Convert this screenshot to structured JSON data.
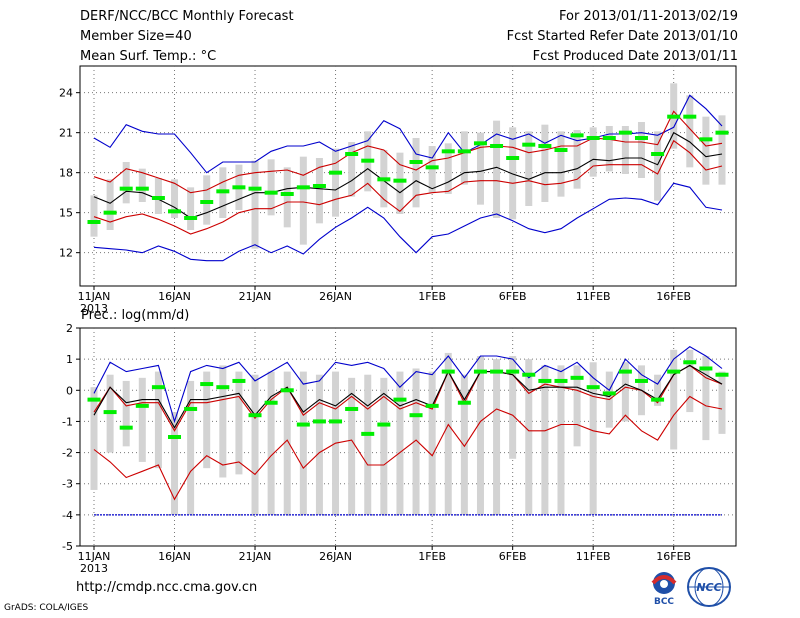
{
  "header": {
    "left": [
      "DERF/NCC/BCC Monthly Forecast",
      "Member Size=40",
      "Mean Surf. Temp.: °C"
    ],
    "right": [
      "For 2013/01/11-2013/02/19",
      "Fcst Started Refer Date 2013/01/10",
      "Fcst Produced Date 2013/01/11"
    ]
  },
  "footer": {
    "url": "http://cmdp.ncc.cma.gov.cn",
    "credit": "GrADS: COLA/IGES"
  },
  "logos": {
    "left_text": "BCC",
    "right_text": "NCC"
  },
  "colors": {
    "box": "#d3d3d3",
    "median": "#00ee00",
    "envelope": "#0000cc",
    "spread": "#cc0000",
    "mean": "#000000"
  },
  "chart_data": [
    {
      "type": "box",
      "title": "Mean Surf. Temp.: °C",
      "xlim": [
        1,
        40
      ],
      "ylim": [
        9.5,
        26
      ],
      "yticks": [
        12,
        15,
        18,
        21,
        24
      ],
      "xticks": [
        1,
        6,
        11,
        16,
        22,
        27,
        32,
        37
      ],
      "xtick_labels": [
        "11JAN",
        "16JAN",
        "21JAN",
        "26JAN",
        "1FEB",
        "6FEB",
        "11FEB",
        "16FEB"
      ],
      "xtick_sublabel": "2013",
      "grid": true,
      "days": [
        1,
        2,
        3,
        4,
        5,
        6,
        7,
        8,
        9,
        10,
        11,
        12,
        13,
        14,
        15,
        16,
        17,
        18,
        19,
        20,
        21,
        22,
        23,
        24,
        25,
        26,
        27,
        28,
        29,
        30,
        31,
        32,
        33,
        34,
        35,
        36,
        37,
        38,
        39,
        40
      ],
      "box_low": [
        13.2,
        13.7,
        15.7,
        15.8,
        14.9,
        14.6,
        13.7,
        14.1,
        14.6,
        15.2,
        12.3,
        14.8,
        13.9,
        12.6,
        14.2,
        14.7,
        16.2,
        16.6,
        15.4,
        14.9,
        15.4,
        16.5,
        16.4,
        17.1,
        15.6,
        14.6,
        14.5,
        15.5,
        15.8,
        16.2,
        16.8,
        17.7,
        18.1,
        17.9,
        17.6,
        15.9,
        19.8,
        18.4,
        17.1,
        17.1
      ],
      "box_high": [
        16.3,
        17.5,
        18.8,
        18.3,
        17.6,
        17.5,
        16.9,
        17.8,
        18.4,
        18.6,
        18.9,
        19.0,
        18.4,
        19.2,
        19.1,
        19.8,
        20.3,
        21.1,
        19.7,
        19.5,
        20.6,
        20.0,
        20.2,
        21.1,
        21.0,
        21.9,
        21.4,
        21.1,
        21.6,
        21.1,
        21.2,
        21.4,
        21.5,
        21.5,
        21.8,
        21.1,
        24.7,
        23.8,
        22.2,
        22.3
      ],
      "median": [
        14.3,
        15.0,
        16.8,
        16.8,
        16.1,
        15.1,
        14.6,
        15.8,
        16.6,
        16.9,
        16.8,
        16.5,
        16.4,
        16.9,
        17.0,
        18.0,
        19.4,
        18.9,
        17.5,
        17.4,
        18.8,
        18.4,
        19.6,
        19.6,
        20.2,
        20.0,
        19.1,
        20.1,
        20.0,
        19.7,
        20.8,
        20.6,
        20.6,
        21.0,
        20.6,
        19.4,
        22.2,
        22.2,
        20.5,
        21.0
      ],
      "series": [
        {
          "name": "max",
          "color": "#0000cc",
          "values": [
            20.6,
            19.9,
            21.6,
            21.1,
            20.9,
            20.9,
            19.5,
            18.0,
            18.8,
            18.8,
            18.8,
            19.6,
            20.0,
            20.0,
            20.3,
            19.6,
            20.0,
            20.4,
            21.9,
            21.3,
            19.4,
            19.1,
            21.0,
            19.5,
            20.1,
            20.9,
            20.5,
            20.9,
            20.2,
            20.8,
            20.4,
            20.6,
            20.9,
            20.9,
            21.0,
            20.8,
            21.4,
            23.8,
            22.8,
            21.5
          ]
        },
        {
          "name": "mean_plus_sd",
          "color": "#cc0000",
          "values": [
            17.7,
            17.3,
            18.3,
            18.0,
            17.6,
            17.2,
            16.5,
            16.7,
            17.3,
            17.8,
            18.0,
            18.1,
            18.2,
            17.8,
            18.4,
            18.7,
            19.5,
            20.0,
            19.7,
            18.6,
            18.2,
            18.9,
            19.1,
            19.5,
            19.9,
            20.0,
            19.9,
            19.5,
            19.7,
            20.0,
            20.0,
            20.6,
            20.5,
            20.3,
            20.3,
            20.1,
            22.6,
            21.3,
            20.0,
            20.2
          ]
        },
        {
          "name": "mean",
          "color": "#000000",
          "values": [
            16.2,
            15.7,
            16.6,
            16.5,
            16.0,
            15.4,
            14.6,
            15.0,
            15.5,
            16.0,
            16.5,
            16.5,
            16.8,
            16.9,
            16.8,
            16.7,
            17.4,
            18.3,
            17.4,
            16.5,
            17.4,
            16.8,
            17.3,
            18.0,
            18.1,
            18.4,
            17.9,
            17.5,
            18.0,
            18.0,
            18.3,
            19.0,
            18.9,
            19.1,
            19.1,
            18.6,
            21.0,
            20.3,
            19.2,
            19.4
          ]
        },
        {
          "name": "mean_minus_sd",
          "color": "#cc0000",
          "values": [
            14.7,
            14.3,
            14.7,
            14.9,
            14.5,
            14.0,
            13.4,
            13.8,
            14.3,
            15.0,
            15.3,
            15.3,
            15.8,
            15.8,
            15.6,
            16.0,
            16.3,
            17.2,
            16.0,
            15.1,
            16.3,
            16.5,
            16.6,
            17.3,
            17.4,
            17.4,
            17.2,
            17.4,
            17.1,
            17.2,
            17.5,
            18.5,
            18.6,
            18.6,
            18.6,
            17.9,
            20.4,
            19.5,
            18.2,
            18.5
          ]
        },
        {
          "name": "min",
          "color": "#0000cc",
          "values": [
            12.4,
            12.3,
            12.2,
            12.0,
            12.5,
            12.1,
            11.5,
            11.4,
            11.4,
            12.1,
            12.6,
            12.0,
            12.5,
            11.9,
            13.0,
            13.9,
            14.6,
            15.4,
            14.6,
            13.2,
            12.0,
            13.2,
            13.4,
            14.0,
            14.6,
            14.9,
            14.4,
            13.8,
            13.5,
            13.8,
            14.6,
            15.3,
            16.0,
            16.1,
            16.0,
            15.6,
            17.2,
            16.9,
            15.4,
            15.2
          ]
        }
      ]
    },
    {
      "type": "box",
      "title": "Prec.: log(mm/d)",
      "xlim": [
        1,
        40
      ],
      "ylim": [
        -5,
        2
      ],
      "yticks": [
        -5,
        -4,
        -3,
        -2,
        -1,
        0,
        1,
        2
      ],
      "xticks": [
        1,
        6,
        11,
        16,
        22,
        27,
        32,
        37
      ],
      "xtick_labels": [
        "11JAN",
        "16JAN",
        "21JAN",
        "26JAN",
        "1FEB",
        "6FEB",
        "11FEB",
        "16FEB"
      ],
      "xtick_sublabel": "2013",
      "grid": true,
      "reference_line": {
        "value": -4,
        "color": "#0000cc"
      },
      "days": [
        1,
        2,
        3,
        4,
        5,
        6,
        7,
        8,
        9,
        10,
        11,
        12,
        13,
        14,
        15,
        16,
        17,
        18,
        19,
        20,
        21,
        22,
        23,
        24,
        25,
        26,
        27,
        28,
        29,
        30,
        31,
        32,
        33,
        34,
        35,
        36,
        37,
        38,
        39,
        40
      ],
      "box_low": [
        -3.2,
        -2.0,
        -1.8,
        -2.3,
        -2.5,
        -4.0,
        -4.0,
        -2.5,
        -2.8,
        -2.7,
        -4.0,
        -4.0,
        -4.0,
        -4.0,
        -4.0,
        -4.0,
        -4.0,
        -4.0,
        -4.0,
        -4.0,
        -4.0,
        -4.0,
        -4.0,
        -4.0,
        -4.0,
        -4.0,
        -2.2,
        -4.0,
        -4.0,
        -4.0,
        -1.8,
        -4.0,
        -1.2,
        -1.0,
        -0.8,
        -0.5,
        -1.9,
        -0.7,
        -1.6,
        -1.4
      ],
      "box_high": [
        0.1,
        0.5,
        0.3,
        0.4,
        0.6,
        -0.7,
        0.3,
        0.6,
        0.8,
        0.6,
        0.5,
        0.6,
        0.6,
        0.6,
        0.5,
        0.6,
        0.4,
        0.5,
        0.4,
        0.6,
        0.7,
        0.6,
        1.2,
        0.5,
        1.1,
        1.0,
        1.1,
        1.0,
        0.8,
        0.8,
        0.8,
        0.9,
        0.6,
        0.9,
        0.8,
        0.5,
        1.3,
        1.3,
        1.1,
        0.6
      ],
      "median": [
        -0.3,
        -0.7,
        -1.2,
        -0.5,
        0.1,
        -1.5,
        -0.6,
        0.2,
        0.1,
        0.3,
        -0.8,
        -0.4,
        0.0,
        -1.1,
        -1.0,
        -1.0,
        -0.6,
        -1.4,
        -1.1,
        -0.3,
        -0.8,
        -0.5,
        0.6,
        -0.4,
        0.6,
        0.6,
        0.6,
        0.5,
        0.3,
        0.3,
        0.4,
        0.1,
        -0.1,
        0.6,
        0.3,
        -0.3,
        0.6,
        0.9,
        0.7,
        0.5
      ],
      "series": [
        {
          "name": "max",
          "color": "#0000cc",
          "values": [
            -0.1,
            0.9,
            0.6,
            0.7,
            0.8,
            -1.0,
            0.6,
            0.8,
            0.7,
            0.9,
            0.3,
            0.6,
            0.9,
            0.2,
            0.3,
            0.9,
            0.8,
            0.9,
            0.7,
            0.1,
            0.6,
            0.5,
            1.1,
            0.4,
            1.1,
            1.1,
            1.0,
            0.4,
            0.8,
            0.6,
            0.9,
            0.4,
            0.0,
            1.0,
            0.5,
            0.2,
            1.0,
            1.4,
            1.1,
            0.7
          ]
        },
        {
          "name": "mean_plus_sd",
          "color": "#cc0000",
          "values": [
            -0.7,
            0.1,
            -0.5,
            -0.4,
            -0.4,
            -1.3,
            -0.4,
            -0.4,
            -0.3,
            -0.2,
            -0.9,
            -0.3,
            0.1,
            -0.8,
            -0.4,
            -0.6,
            -0.2,
            -0.6,
            -0.2,
            -0.6,
            -0.4,
            -0.6,
            0.6,
            -0.4,
            0.6,
            0.6,
            0.5,
            -0.1,
            0.2,
            0.1,
            0.0,
            -0.2,
            -0.3,
            0.1,
            0.0,
            -0.4,
            0.5,
            0.8,
            0.4,
            0.2
          ]
        },
        {
          "name": "mean",
          "color": "#000000",
          "values": [
            -0.8,
            0.1,
            -0.4,
            -0.3,
            -0.3,
            -1.2,
            -0.3,
            -0.3,
            -0.2,
            -0.1,
            -0.8,
            -0.2,
            0.1,
            -0.7,
            -0.3,
            -0.5,
            -0.1,
            -0.5,
            -0.1,
            -0.5,
            -0.3,
            -0.5,
            0.6,
            -0.3,
            0.6,
            0.6,
            0.5,
            0.0,
            0.1,
            0.1,
            0.1,
            -0.1,
            -0.2,
            0.2,
            0.0,
            -0.3,
            0.5,
            0.8,
            0.5,
            0.2
          ]
        },
        {
          "name": "mean_minus_sd",
          "color": "#cc0000",
          "values": [
            -1.9,
            -2.3,
            -2.8,
            -2.6,
            -2.4,
            -3.5,
            -2.6,
            -2.1,
            -2.4,
            -2.3,
            -2.7,
            -2.1,
            -1.6,
            -2.5,
            -2.0,
            -1.7,
            -1.6,
            -2.4,
            -2.4,
            -2.0,
            -1.6,
            -2.1,
            -1.1,
            -1.8,
            -1.0,
            -0.6,
            -0.8,
            -1.3,
            -1.3,
            -1.1,
            -1.1,
            -1.3,
            -1.4,
            -0.8,
            -1.3,
            -1.6,
            -0.8,
            -0.2,
            -0.5,
            -0.6
          ]
        },
        {
          "name": "min",
          "color": "#0000cc",
          "values": [
            -4.0,
            -4.0,
            -4.0,
            -4.0,
            -4.0,
            -4.0,
            -4.0,
            -4.0,
            -4.0,
            -4.0,
            -4.0,
            -4.0,
            -4.0,
            -4.0,
            -4.0,
            -4.0,
            -4.0,
            -4.0,
            -4.0,
            -4.0,
            -4.0,
            -4.0,
            -4.0,
            -4.0,
            -4.0,
            -4.0,
            -4.0,
            -4.0,
            -4.0,
            -4.0,
            -4.0,
            -4.0,
            -4.0,
            -4.0,
            -4.0,
            -4.0,
            -4.0,
            -4.0,
            -4.0,
            -4.0
          ]
        }
      ]
    }
  ]
}
